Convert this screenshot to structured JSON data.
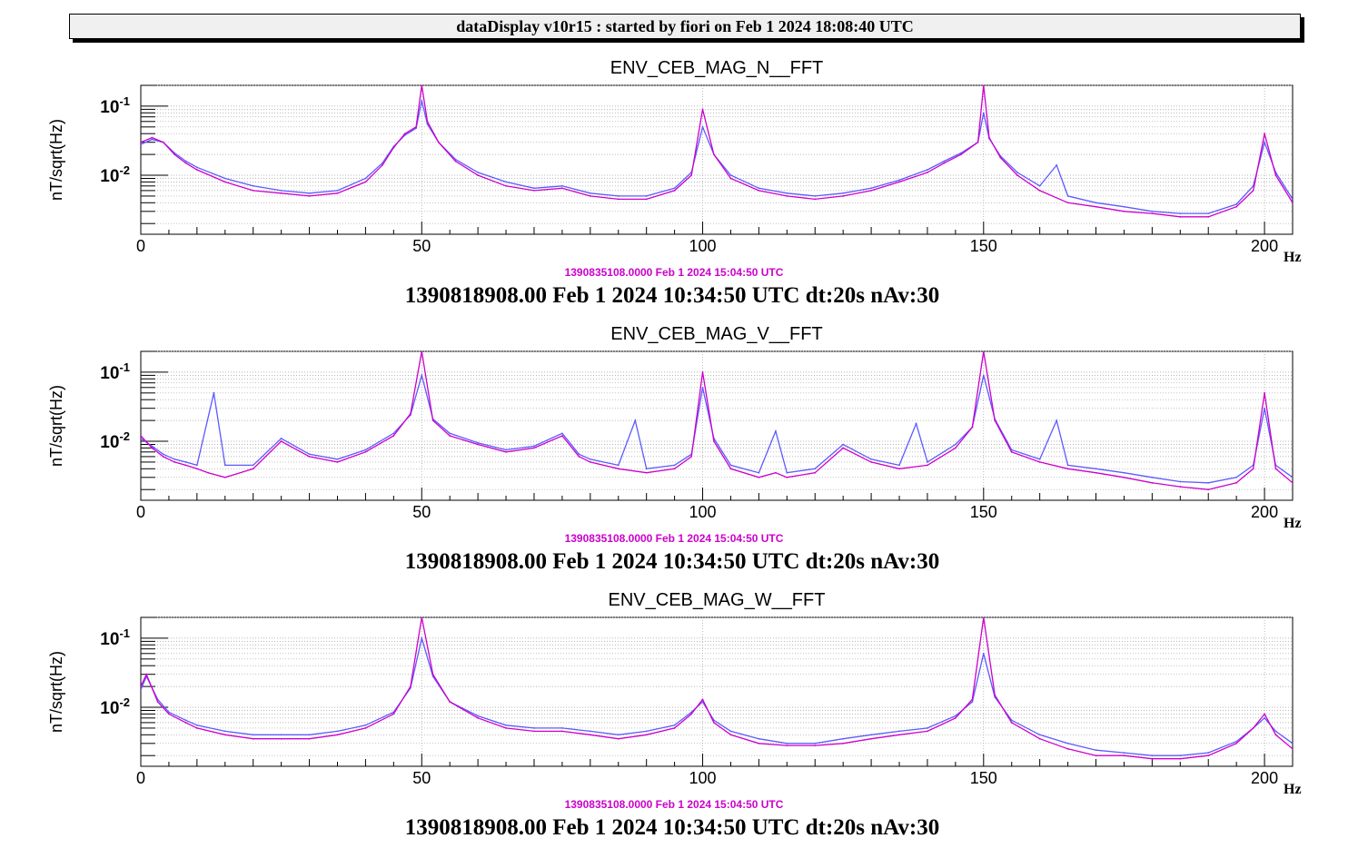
{
  "window": {
    "banner": "dataDisplay v10r15 : started by fiori on Feb  1 2024 18:08:40 UTC"
  },
  "colors": {
    "reference_trace": "#cc00cc",
    "current_trace": "#5b5bff",
    "grid": "#a0a0a0"
  },
  "chart_data": [
    {
      "type": "line",
      "title": "ENV_CEB_MAG_N__FFT",
      "ylabel": "nT/sqrt(Hz)",
      "xlabel": "Hz",
      "xlim": [
        0,
        205
      ],
      "ylim": [
        0.0014,
        0.2
      ],
      "yscale": "log",
      "grid": true,
      "xticks": [
        "0",
        "50",
        "100",
        "150",
        "200"
      ],
      "yticks": [
        {
          "mantissa": "10",
          "exp": "-1",
          "value": 0.1
        },
        {
          "mantissa": "10",
          "exp": "-2",
          "value": 0.01
        }
      ],
      "reference_label": "1390835108.0000 Feb 1 2024 15:04:50 UTC",
      "caption": "1390818908.00 Feb 1 2024 10:34:50 UTC dt:20s nAv:30",
      "series": [
        {
          "color": "#cc00cc",
          "x": [
            0,
            2,
            4,
            6,
            8,
            10,
            15,
            20,
            25,
            30,
            35,
            40,
            43,
            45,
            47,
            49,
            50,
            51,
            53,
            56,
            60,
            65,
            70,
            75,
            80,
            85,
            90,
            95,
            98,
            100,
            102,
            105,
            110,
            115,
            120,
            125,
            130,
            135,
            140,
            143,
            146,
            149,
            150,
            151,
            153,
            156,
            160,
            165,
            170,
            175,
            180,
            185,
            190,
            195,
            198,
            200,
            202,
            205
          ],
          "y": [
            0.03,
            0.035,
            0.03,
            0.02,
            0.015,
            0.012,
            0.008,
            0.006,
            0.0055,
            0.005,
            0.0055,
            0.008,
            0.014,
            0.025,
            0.04,
            0.05,
            0.2,
            0.06,
            0.03,
            0.016,
            0.01,
            0.007,
            0.006,
            0.0065,
            0.005,
            0.0045,
            0.0045,
            0.006,
            0.01,
            0.09,
            0.02,
            0.009,
            0.006,
            0.005,
            0.0045,
            0.005,
            0.006,
            0.008,
            0.011,
            0.015,
            0.02,
            0.03,
            0.2,
            0.035,
            0.018,
            0.01,
            0.006,
            0.004,
            0.0035,
            0.003,
            0.0028,
            0.0025,
            0.0025,
            0.0035,
            0.006,
            0.04,
            0.01,
            0.004
          ]
        },
        {
          "color": "#5b5bff",
          "x": [
            0,
            2,
            4,
            6,
            8,
            10,
            15,
            20,
            25,
            30,
            35,
            40,
            43,
            45,
            47,
            49,
            50,
            51,
            53,
            56,
            60,
            65,
            70,
            75,
            80,
            85,
            90,
            95,
            98,
            100,
            102,
            105,
            110,
            115,
            120,
            125,
            130,
            135,
            140,
            143,
            146,
            149,
            150,
            151,
            153,
            156,
            160,
            163,
            165,
            170,
            175,
            180,
            185,
            190,
            195,
            198,
            200,
            202,
            205
          ],
          "y": [
            0.028,
            0.033,
            0.03,
            0.021,
            0.016,
            0.013,
            0.009,
            0.007,
            0.006,
            0.0055,
            0.006,
            0.009,
            0.015,
            0.026,
            0.038,
            0.048,
            0.12,
            0.055,
            0.03,
            0.017,
            0.011,
            0.008,
            0.0065,
            0.007,
            0.0055,
            0.005,
            0.005,
            0.0065,
            0.011,
            0.05,
            0.02,
            0.01,
            0.0065,
            0.0055,
            0.005,
            0.0055,
            0.0065,
            0.0085,
            0.012,
            0.016,
            0.021,
            0.03,
            0.08,
            0.034,
            0.019,
            0.011,
            0.007,
            0.014,
            0.005,
            0.004,
            0.0035,
            0.003,
            0.0028,
            0.0028,
            0.0038,
            0.007,
            0.03,
            0.011,
            0.0045
          ]
        }
      ]
    },
    {
      "type": "line",
      "title": "ENV_CEB_MAG_V__FFT",
      "ylabel": "nT/sqrt(Hz)",
      "xlabel": "Hz",
      "xlim": [
        0,
        205
      ],
      "ylim": [
        0.0014,
        0.2
      ],
      "yscale": "log",
      "grid": true,
      "xticks": [
        "0",
        "50",
        "100",
        "150",
        "200"
      ],
      "yticks": [
        {
          "mantissa": "10",
          "exp": "-1",
          "value": 0.1
        },
        {
          "mantissa": "10",
          "exp": "-2",
          "value": 0.01
        }
      ],
      "reference_label": "1390835108.0000 Feb 1 2024 15:04:50 UTC",
      "caption": "1390818908.00 Feb 1 2024 10:34:50 UTC dt:20s nAv:30",
      "series": [
        {
          "color": "#cc00cc",
          "x": [
            0,
            2,
            4,
            6,
            8,
            10,
            12,
            15,
            20,
            25,
            30,
            35,
            40,
            45,
            48,
            50,
            52,
            55,
            60,
            65,
            70,
            75,
            78,
            80,
            85,
            90,
            95,
            98,
            100,
            102,
            105,
            110,
            113,
            115,
            120,
            125,
            130,
            135,
            140,
            145,
            148,
            150,
            152,
            155,
            160,
            165,
            170,
            175,
            180,
            185,
            190,
            195,
            198,
            200,
            202,
            205
          ],
          "y": [
            0.012,
            0.008,
            0.006,
            0.005,
            0.0045,
            0.004,
            0.0035,
            0.003,
            0.004,
            0.01,
            0.006,
            0.005,
            0.007,
            0.012,
            0.025,
            0.2,
            0.02,
            0.012,
            0.009,
            0.007,
            0.008,
            0.012,
            0.006,
            0.005,
            0.004,
            0.0035,
            0.004,
            0.006,
            0.1,
            0.01,
            0.004,
            0.003,
            0.0035,
            0.003,
            0.0035,
            0.008,
            0.005,
            0.004,
            0.0045,
            0.008,
            0.016,
            0.2,
            0.02,
            0.007,
            0.005,
            0.004,
            0.0035,
            0.003,
            0.0025,
            0.0022,
            0.002,
            0.0025,
            0.004,
            0.05,
            0.004,
            0.0025
          ]
        },
        {
          "color": "#5b5bff",
          "x": [
            0,
            2,
            4,
            6,
            8,
            10,
            13,
            15,
            20,
            25,
            30,
            35,
            40,
            45,
            48,
            50,
            52,
            55,
            60,
            65,
            70,
            75,
            78,
            80,
            85,
            88,
            90,
            95,
            98,
            100,
            102,
            105,
            110,
            113,
            115,
            120,
            125,
            130,
            135,
            138,
            140,
            145,
            148,
            150,
            152,
            155,
            160,
            163,
            165,
            170,
            175,
            180,
            185,
            190,
            195,
            198,
            200,
            202,
            205
          ],
          "y": [
            0.011,
            0.0085,
            0.0065,
            0.0055,
            0.005,
            0.0045,
            0.05,
            0.0045,
            0.0045,
            0.011,
            0.0065,
            0.0055,
            0.0075,
            0.013,
            0.024,
            0.09,
            0.021,
            0.013,
            0.0095,
            0.0075,
            0.0085,
            0.013,
            0.0065,
            0.0055,
            0.0045,
            0.02,
            0.004,
            0.0045,
            0.0065,
            0.06,
            0.011,
            0.0045,
            0.0035,
            0.014,
            0.0035,
            0.004,
            0.009,
            0.0055,
            0.0045,
            0.018,
            0.005,
            0.009,
            0.016,
            0.09,
            0.021,
            0.0075,
            0.0055,
            0.02,
            0.0045,
            0.004,
            0.0035,
            0.003,
            0.0026,
            0.0025,
            0.003,
            0.0045,
            0.03,
            0.0045,
            0.003
          ]
        }
      ]
    },
    {
      "type": "line",
      "title": "ENV_CEB_MAG_W__FFT",
      "ylabel": "nT/sqrt(Hz)",
      "xlabel": "Hz",
      "xlim": [
        0,
        205
      ],
      "ylim": [
        0.0014,
        0.2
      ],
      "yscale": "log",
      "grid": true,
      "xticks": [
        "0",
        "50",
        "100",
        "150",
        "200"
      ],
      "yticks": [
        {
          "mantissa": "10",
          "exp": "-1",
          "value": 0.1
        },
        {
          "mantissa": "10",
          "exp": "-2",
          "value": 0.01
        }
      ],
      "reference_label": "1390835108.0000 Feb 1 2024 15:04:50 UTC",
      "caption": "1390818908.00 Feb 1 2024 10:34:50 UTC dt:20s nAv:30",
      "series": [
        {
          "color": "#cc00cc",
          "x": [
            0,
            1,
            3,
            5,
            8,
            10,
            15,
            20,
            25,
            30,
            35,
            40,
            45,
            48,
            50,
            52,
            55,
            60,
            65,
            70,
            75,
            80,
            85,
            90,
            95,
            98,
            100,
            102,
            105,
            110,
            115,
            120,
            125,
            130,
            135,
            140,
            145,
            148,
            150,
            152,
            155,
            160,
            165,
            170,
            175,
            180,
            185,
            190,
            195,
            198,
            200,
            202,
            205
          ],
          "y": [
            0.02,
            0.03,
            0.012,
            0.008,
            0.006,
            0.005,
            0.004,
            0.0035,
            0.0035,
            0.0035,
            0.004,
            0.005,
            0.008,
            0.02,
            0.2,
            0.03,
            0.012,
            0.007,
            0.005,
            0.0045,
            0.0045,
            0.004,
            0.0035,
            0.004,
            0.005,
            0.008,
            0.013,
            0.006,
            0.004,
            0.003,
            0.0028,
            0.0028,
            0.003,
            0.0035,
            0.004,
            0.0045,
            0.007,
            0.013,
            0.2,
            0.015,
            0.006,
            0.0035,
            0.0025,
            0.002,
            0.002,
            0.0018,
            0.0018,
            0.002,
            0.003,
            0.005,
            0.008,
            0.004,
            0.0025
          ]
        },
        {
          "color": "#5b5bff",
          "x": [
            0,
            1,
            3,
            5,
            8,
            10,
            15,
            20,
            25,
            30,
            35,
            40,
            45,
            48,
            50,
            52,
            55,
            60,
            65,
            70,
            75,
            80,
            85,
            90,
            95,
            98,
            100,
            102,
            105,
            110,
            115,
            120,
            125,
            130,
            135,
            140,
            145,
            148,
            150,
            152,
            155,
            160,
            165,
            170,
            175,
            180,
            185,
            190,
            195,
            198,
            200,
            202,
            205
          ],
          "y": [
            0.018,
            0.028,
            0.013,
            0.0085,
            0.0065,
            0.0055,
            0.0045,
            0.004,
            0.004,
            0.004,
            0.0045,
            0.0055,
            0.0085,
            0.019,
            0.1,
            0.028,
            0.012,
            0.0075,
            0.0055,
            0.005,
            0.005,
            0.0045,
            0.004,
            0.0045,
            0.0055,
            0.0085,
            0.012,
            0.0065,
            0.0045,
            0.0035,
            0.003,
            0.003,
            0.0035,
            0.004,
            0.0045,
            0.005,
            0.0075,
            0.012,
            0.06,
            0.014,
            0.0065,
            0.004,
            0.003,
            0.0024,
            0.0022,
            0.002,
            0.002,
            0.0022,
            0.0032,
            0.005,
            0.007,
            0.0045,
            0.003
          ]
        }
      ]
    }
  ]
}
